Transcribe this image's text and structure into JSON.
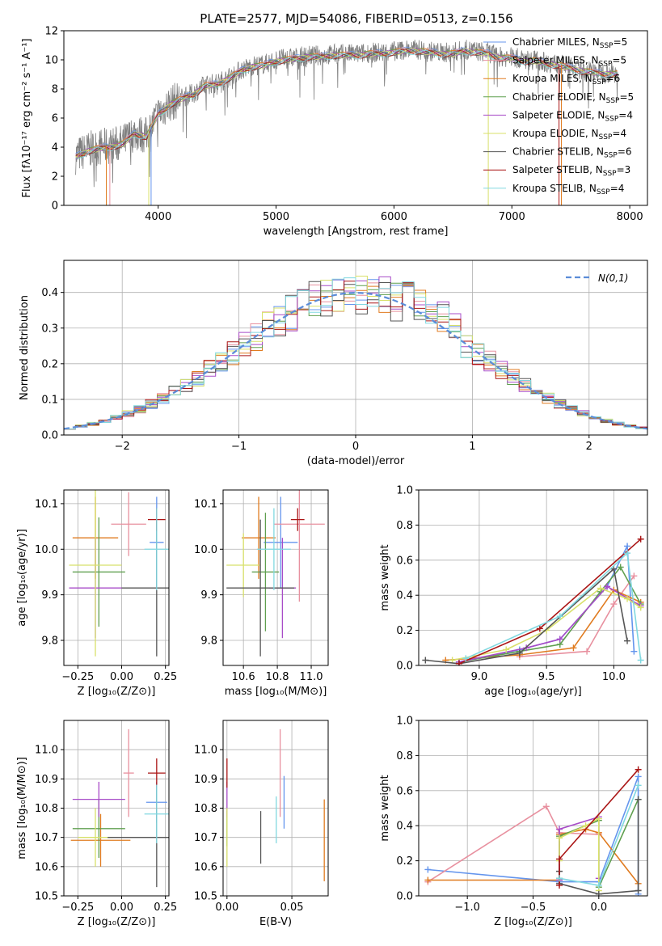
{
  "figure": {
    "title": "PLATE=2577, MJD=54086, FIBERID=0513, z=0.156"
  },
  "series_colors": [
    "#6495ed",
    "#e8909f",
    "#e07b20",
    "#5f9f4f",
    "#a84cc8",
    "#d8e06a",
    "#555555",
    "#aa1515",
    "#80d8e0"
  ],
  "chart_data": [
    {
      "id": "spectrum",
      "type": "line",
      "xlabel": "wavelength [Angstrom, rest frame]",
      "ylabel": "Flux [fλ10⁻¹⁷ erg cm⁻² s⁻¹ A⁻¹]",
      "xlim": [
        3200,
        8150
      ],
      "ylim": [
        0,
        12
      ],
      "xticks": [
        4000,
        5000,
        6000,
        7000,
        8000
      ],
      "yticks": [
        0,
        2,
        4,
        6,
        8,
        10,
        12
      ],
      "grid": false,
      "legend_loc": "upper right",
      "legend": [
        {
          "label": "Chabrier MILES, N",
          "sub": "SSP",
          "tail": "=5"
        },
        {
          "label": "Salpeter MILES, N",
          "sub": "SSP",
          "tail": "=5"
        },
        {
          "label": "Kroupa MILES, N",
          "sub": "SSP",
          "tail": "=6"
        },
        {
          "label": "Chabrier ELODIE, N",
          "sub": "SSP",
          "tail": "=5"
        },
        {
          "label": "Salpeter ELODIE, N",
          "sub": "SSP",
          "tail": "=4"
        },
        {
          "label": "Kroupa ELODIE, N",
          "sub": "SSP",
          "tail": "=4"
        },
        {
          "label": "Chabrier STELIB, N",
          "sub": "SSP",
          "tail": "=6"
        },
        {
          "label": "Salpeter STELIB, N",
          "sub": "SSP",
          "tail": "=3"
        },
        {
          "label": "Kroupa STELIB, N",
          "sub": "SSP",
          "tail": "=4"
        }
      ],
      "data_curve": {
        "x": [
          3300,
          3400,
          3500,
          3600,
          3700,
          3800,
          3900,
          4000,
          4100,
          4200,
          4300,
          4400,
          4500,
          4600,
          4700,
          4800,
          4900,
          5000,
          5100,
          5200,
          5300,
          5400,
          5500,
          5600,
          5700,
          5800,
          5900,
          6000,
          6100,
          6200,
          6300,
          6400,
          6500,
          6600,
          6700,
          6800,
          6900,
          7000,
          7100,
          7200,
          7300,
          7400,
          7500,
          7600,
          7700,
          7800,
          7900
        ],
        "y": [
          3.4,
          3.8,
          4.0,
          4.1,
          4.3,
          5.0,
          4.8,
          6.3,
          7.0,
          7.4,
          7.7,
          8.3,
          8.4,
          8.8,
          9.3,
          9.6,
          9.7,
          10.0,
          10.1,
          10.2,
          10.3,
          10.3,
          10.4,
          10.4,
          10.4,
          10.5,
          10.5,
          10.6,
          10.7,
          10.7,
          10.6,
          10.5,
          10.5,
          10.7,
          10.6,
          10.5,
          10.2,
          10.2,
          10.0,
          10.0,
          9.8,
          9.7,
          9.5,
          9.3,
          9.2,
          9.1,
          9.1
        ]
      }
    },
    {
      "id": "residuals",
      "type": "area",
      "xlabel": "(data-model)/error",
      "ylabel": "Normed distribution",
      "xlim": [
        -2.5,
        2.5
      ],
      "ylim": [
        0,
        0.49
      ],
      "xticks": [
        -2,
        -1,
        0,
        1,
        2
      ],
      "yticks": [
        0.0,
        0.1,
        0.2,
        0.3,
        0.4
      ],
      "grid": true,
      "legend_loc": "upper right",
      "legend_label": "N(0,1)",
      "gaussian": {
        "mean": 0,
        "sigma": 1
      }
    },
    {
      "id": "age_vs_Z",
      "type": "scatter",
      "xlabel": "Z [log₁₀(Z/Z⊙)]",
      "ylabel": "age  [log₁₀(age/yr)]",
      "xlim": [
        -0.33,
        0.27
      ],
      "ylim": [
        9.745,
        10.13
      ],
      "xticks": [
        -0.25,
        0.0,
        0.25
      ],
      "yticks": [
        9.8,
        9.9,
        10.0,
        10.1
      ],
      "grid": true,
      "points": [
        {
          "x": 0.2,
          "y": 10.015,
          "xerr": 0.04,
          "yerr": 0.1
        },
        {
          "x": 0.04,
          "y": 10.055,
          "xerr": 0.1,
          "yerr": 0.07
        },
        {
          "x": -0.15,
          "y": 10.025,
          "xerr": 0.13,
          "yerr": 0.09
        },
        {
          "x": -0.13,
          "y": 9.95,
          "xerr": 0.15,
          "yerr": 0.12
        },
        {
          "x": -0.15,
          "y": 9.915,
          "xerr": 0.15,
          "yerr": 0.11
        },
        {
          "x": -0.15,
          "y": 9.965,
          "xerr": 0.15,
          "yerr": 0.2
        },
        {
          "x": 0.2,
          "y": 9.915,
          "xerr": 0.2,
          "yerr": 0.15
        },
        {
          "x": 0.2,
          "y": 10.065,
          "xerr": 0.05,
          "yerr": 0.025
        },
        {
          "x": 0.2,
          "y": 10.0,
          "xerr": 0.07,
          "yerr": 0.09
        }
      ]
    },
    {
      "id": "age_vs_mass",
      "type": "scatter",
      "xlabel": "mass [log₁₀(M/M⊙)]",
      "ylabel": "",
      "xlim": [
        10.48,
        11.1
      ],
      "ylim": [
        9.745,
        10.13
      ],
      "xticks": [
        10.6,
        10.8,
        11.0
      ],
      "yticks": [
        9.8,
        9.9,
        10.0,
        10.1
      ],
      "grid": true,
      "points": [
        {
          "x": 10.82,
          "y": 10.015,
          "xerr": 0.1,
          "yerr": 0.1
        },
        {
          "x": 10.93,
          "y": 10.055,
          "xerr": 0.15,
          "yerr": 0.17
        },
        {
          "x": 10.69,
          "y": 10.025,
          "xerr": 0.1,
          "yerr": 0.09
        },
        {
          "x": 10.73,
          "y": 9.95,
          "xerr": 0.08,
          "yerr": 0.13
        },
        {
          "x": 10.83,
          "y": 9.915,
          "xerr": 0.08,
          "yerr": 0.11
        },
        {
          "x": 10.6,
          "y": 9.965,
          "xerr": 0.1,
          "yerr": 0.07
        },
        {
          "x": 10.7,
          "y": 9.915,
          "xerr": 0.2,
          "yerr": 0.15
        },
        {
          "x": 10.92,
          "y": 10.065,
          "xerr": 0.04,
          "yerr": 0.025
        },
        {
          "x": 10.78,
          "y": 10.0,
          "xerr": 0.1,
          "yerr": 0.09
        }
      ]
    },
    {
      "id": "weight_vs_age",
      "type": "line",
      "xlabel": "age  [log₁₀(age/yr)]",
      "ylabel": "mass weight",
      "xlim": [
        8.55,
        10.25
      ],
      "ylim": [
        0,
        1.0
      ],
      "xticks": [
        9.0,
        9.5,
        10.0
      ],
      "yticks": [
        0.0,
        0.2,
        0.4,
        0.6,
        0.8,
        1.0
      ],
      "grid": true,
      "series": [
        {
          "x": [
            8.85,
            9.3,
            9.6,
            9.95,
            10.1,
            10.15
          ],
          "y": [
            0.02,
            0.09,
            0.15,
            0.45,
            0.68,
            0.08
          ]
        },
        {
          "x": [
            9.3,
            9.8,
            10.0,
            10.15
          ],
          "y": [
            0.05,
            0.08,
            0.35,
            0.51
          ]
        },
        {
          "x": [
            8.75,
            9.3,
            9.7,
            10.0,
            10.2
          ],
          "y": [
            0.03,
            0.06,
            0.1,
            0.43,
            0.36
          ]
        },
        {
          "x": [
            8.85,
            9.3,
            9.6,
            9.9,
            10.05,
            10.2
          ],
          "y": [
            0.02,
            0.08,
            0.12,
            0.42,
            0.56,
            0.35
          ]
        },
        {
          "x": [
            8.85,
            9.35,
            9.6,
            9.95,
            10.2
          ],
          "y": [
            0.02,
            0.1,
            0.15,
            0.45,
            0.34
          ]
        },
        {
          "x": [
            8.8,
            9.2,
            9.5,
            9.9,
            10.1,
            10.2
          ],
          "y": [
            0.03,
            0.09,
            0.2,
            0.44,
            0.38,
            0.33
          ]
        },
        {
          "x": [
            8.6,
            8.85,
            9.3,
            10.0,
            10.1
          ],
          "y": [
            0.03,
            0.01,
            0.07,
            0.55,
            0.14
          ]
        },
        {
          "x": [
            8.85,
            9.45,
            10.2
          ],
          "y": [
            0.01,
            0.21,
            0.72
          ]
        },
        {
          "x": [
            8.9,
            9.6,
            10.1,
            10.2
          ],
          "y": [
            0.04,
            0.28,
            0.64,
            0.03
          ]
        }
      ]
    },
    {
      "id": "mass_vs_Z",
      "type": "scatter",
      "xlabel": "Z [log₁₀(Z/Z⊙)]",
      "ylabel": "mass [log₁₀(M/M⊙)]",
      "xlim": [
        -0.33,
        0.27
      ],
      "ylim": [
        10.5,
        11.1
      ],
      "xticks": [
        -0.25,
        0.0,
        0.25
      ],
      "yticks": [
        10.5,
        10.6,
        10.7,
        10.8,
        10.9,
        11.0
      ],
      "grid": true,
      "points": [
        {
          "x": 0.2,
          "y": 10.82,
          "xerr": 0.06,
          "yerr": 0.07
        },
        {
          "x": 0.04,
          "y": 10.92,
          "xerr": 0.03,
          "yerr": 0.15
        },
        {
          "x": -0.12,
          "y": 10.69,
          "xerr": 0.17,
          "yerr": 0.09
        },
        {
          "x": -0.13,
          "y": 10.73,
          "xerr": 0.15,
          "yerr": 0.1
        },
        {
          "x": -0.13,
          "y": 10.83,
          "xerr": 0.15,
          "yerr": 0.06
        },
        {
          "x": -0.15,
          "y": 10.7,
          "xerr": 0.1,
          "yerr": 0.1
        },
        {
          "x": 0.2,
          "y": 10.7,
          "xerr": 0.28,
          "yerr": 0.17
        },
        {
          "x": 0.2,
          "y": 10.92,
          "xerr": 0.05,
          "yerr": 0.05
        },
        {
          "x": 0.2,
          "y": 10.78,
          "xerr": 0.07,
          "yerr": 0.1
        }
      ]
    },
    {
      "id": "mass_vs_ebv",
      "type": "scatter",
      "xlabel": "E(B-V)",
      "ylabel": "",
      "xlim": [
        -0.003,
        0.078
      ],
      "ylim": [
        10.5,
        11.1
      ],
      "xticks": [
        0.0,
        0.05
      ],
      "yticks": [
        10.5,
        10.6,
        10.7,
        10.8,
        10.9,
        11.0
      ],
      "grid": true,
      "points": [
        {
          "x": 0.044,
          "y": 10.82,
          "xerr": 0.0,
          "yerr": 0.09
        },
        {
          "x": 0.041,
          "y": 10.92,
          "xerr": 0.0,
          "yerr": 0.15
        },
        {
          "x": 0.075,
          "y": 10.69,
          "xerr": 0.0,
          "yerr": 0.14
        },
        {
          "x": 0.0,
          "y": 10.73,
          "xerr": 0.0,
          "yerr": 0.06
        },
        {
          "x": 0.0,
          "y": 10.83,
          "xerr": 0.0,
          "yerr": 0.06
        },
        {
          "x": 0.0,
          "y": 10.7,
          "xerr": 0.0,
          "yerr": 0.1
        },
        {
          "x": 0.026,
          "y": 10.7,
          "xerr": 0.0,
          "yerr": 0.09
        },
        {
          "x": 0.0,
          "y": 10.92,
          "xerr": 0.0,
          "yerr": 0.05
        },
        {
          "x": 0.038,
          "y": 10.76,
          "xerr": 0.0,
          "yerr": 0.08
        }
      ]
    },
    {
      "id": "weight_vs_Z",
      "type": "line",
      "xlabel": "Z [log₁₀(Z/Z⊙)]",
      "ylabel": "mass weight",
      "xlim": [
        -1.37,
        0.37
      ],
      "ylim": [
        0,
        1.0
      ],
      "xticks": [
        -1.0,
        -0.5,
        0.0
      ],
      "yticks": [
        0.0,
        0.2,
        0.4,
        0.6,
        0.8,
        1.0
      ],
      "grid": true,
      "series": [
        {
          "x": [
            -1.3,
            -0.3,
            0.0,
            0.3,
            0.3
          ],
          "y": [
            0.15,
            0.08,
            0.08,
            0.68,
            0.01
          ]
        },
        {
          "x": [
            -1.3,
            -0.4,
            -0.3,
            0.0
          ],
          "y": [
            0.08,
            0.51,
            0.36,
            0.35
          ]
        },
        {
          "x": [
            -1.3,
            -0.3,
            -0.3,
            -0.1,
            0.0,
            0.3
          ],
          "y": [
            0.09,
            0.09,
            0.35,
            0.38,
            0.36,
            0.07
          ]
        },
        {
          "x": [
            -0.3,
            -0.3,
            0.0,
            0.0,
            0.3
          ],
          "y": [
            0.1,
            0.34,
            0.43,
            0.05,
            0.55
          ]
        },
        {
          "x": [
            -0.3,
            -0.3,
            0.0,
            0.0
          ],
          "y": [
            0.09,
            0.38,
            0.45,
            0.1
          ]
        },
        {
          "x": [
            -0.3,
            -0.3,
            -0.1,
            0.0,
            0.0
          ],
          "y": [
            0.2,
            0.33,
            0.4,
            0.44,
            0.03
          ]
        },
        {
          "x": [
            -0.3,
            -0.3,
            0.0,
            0.3,
            0.3
          ],
          "y": [
            0.14,
            0.07,
            0.01,
            0.03,
            0.55
          ]
        },
        {
          "x": [
            -0.3,
            -0.3,
            0.3
          ],
          "y": [
            0.06,
            0.21,
            0.72
          ]
        },
        {
          "x": [
            -0.3,
            0.0,
            0.3
          ],
          "y": [
            0.1,
            0.06,
            0.63
          ]
        }
      ]
    }
  ]
}
